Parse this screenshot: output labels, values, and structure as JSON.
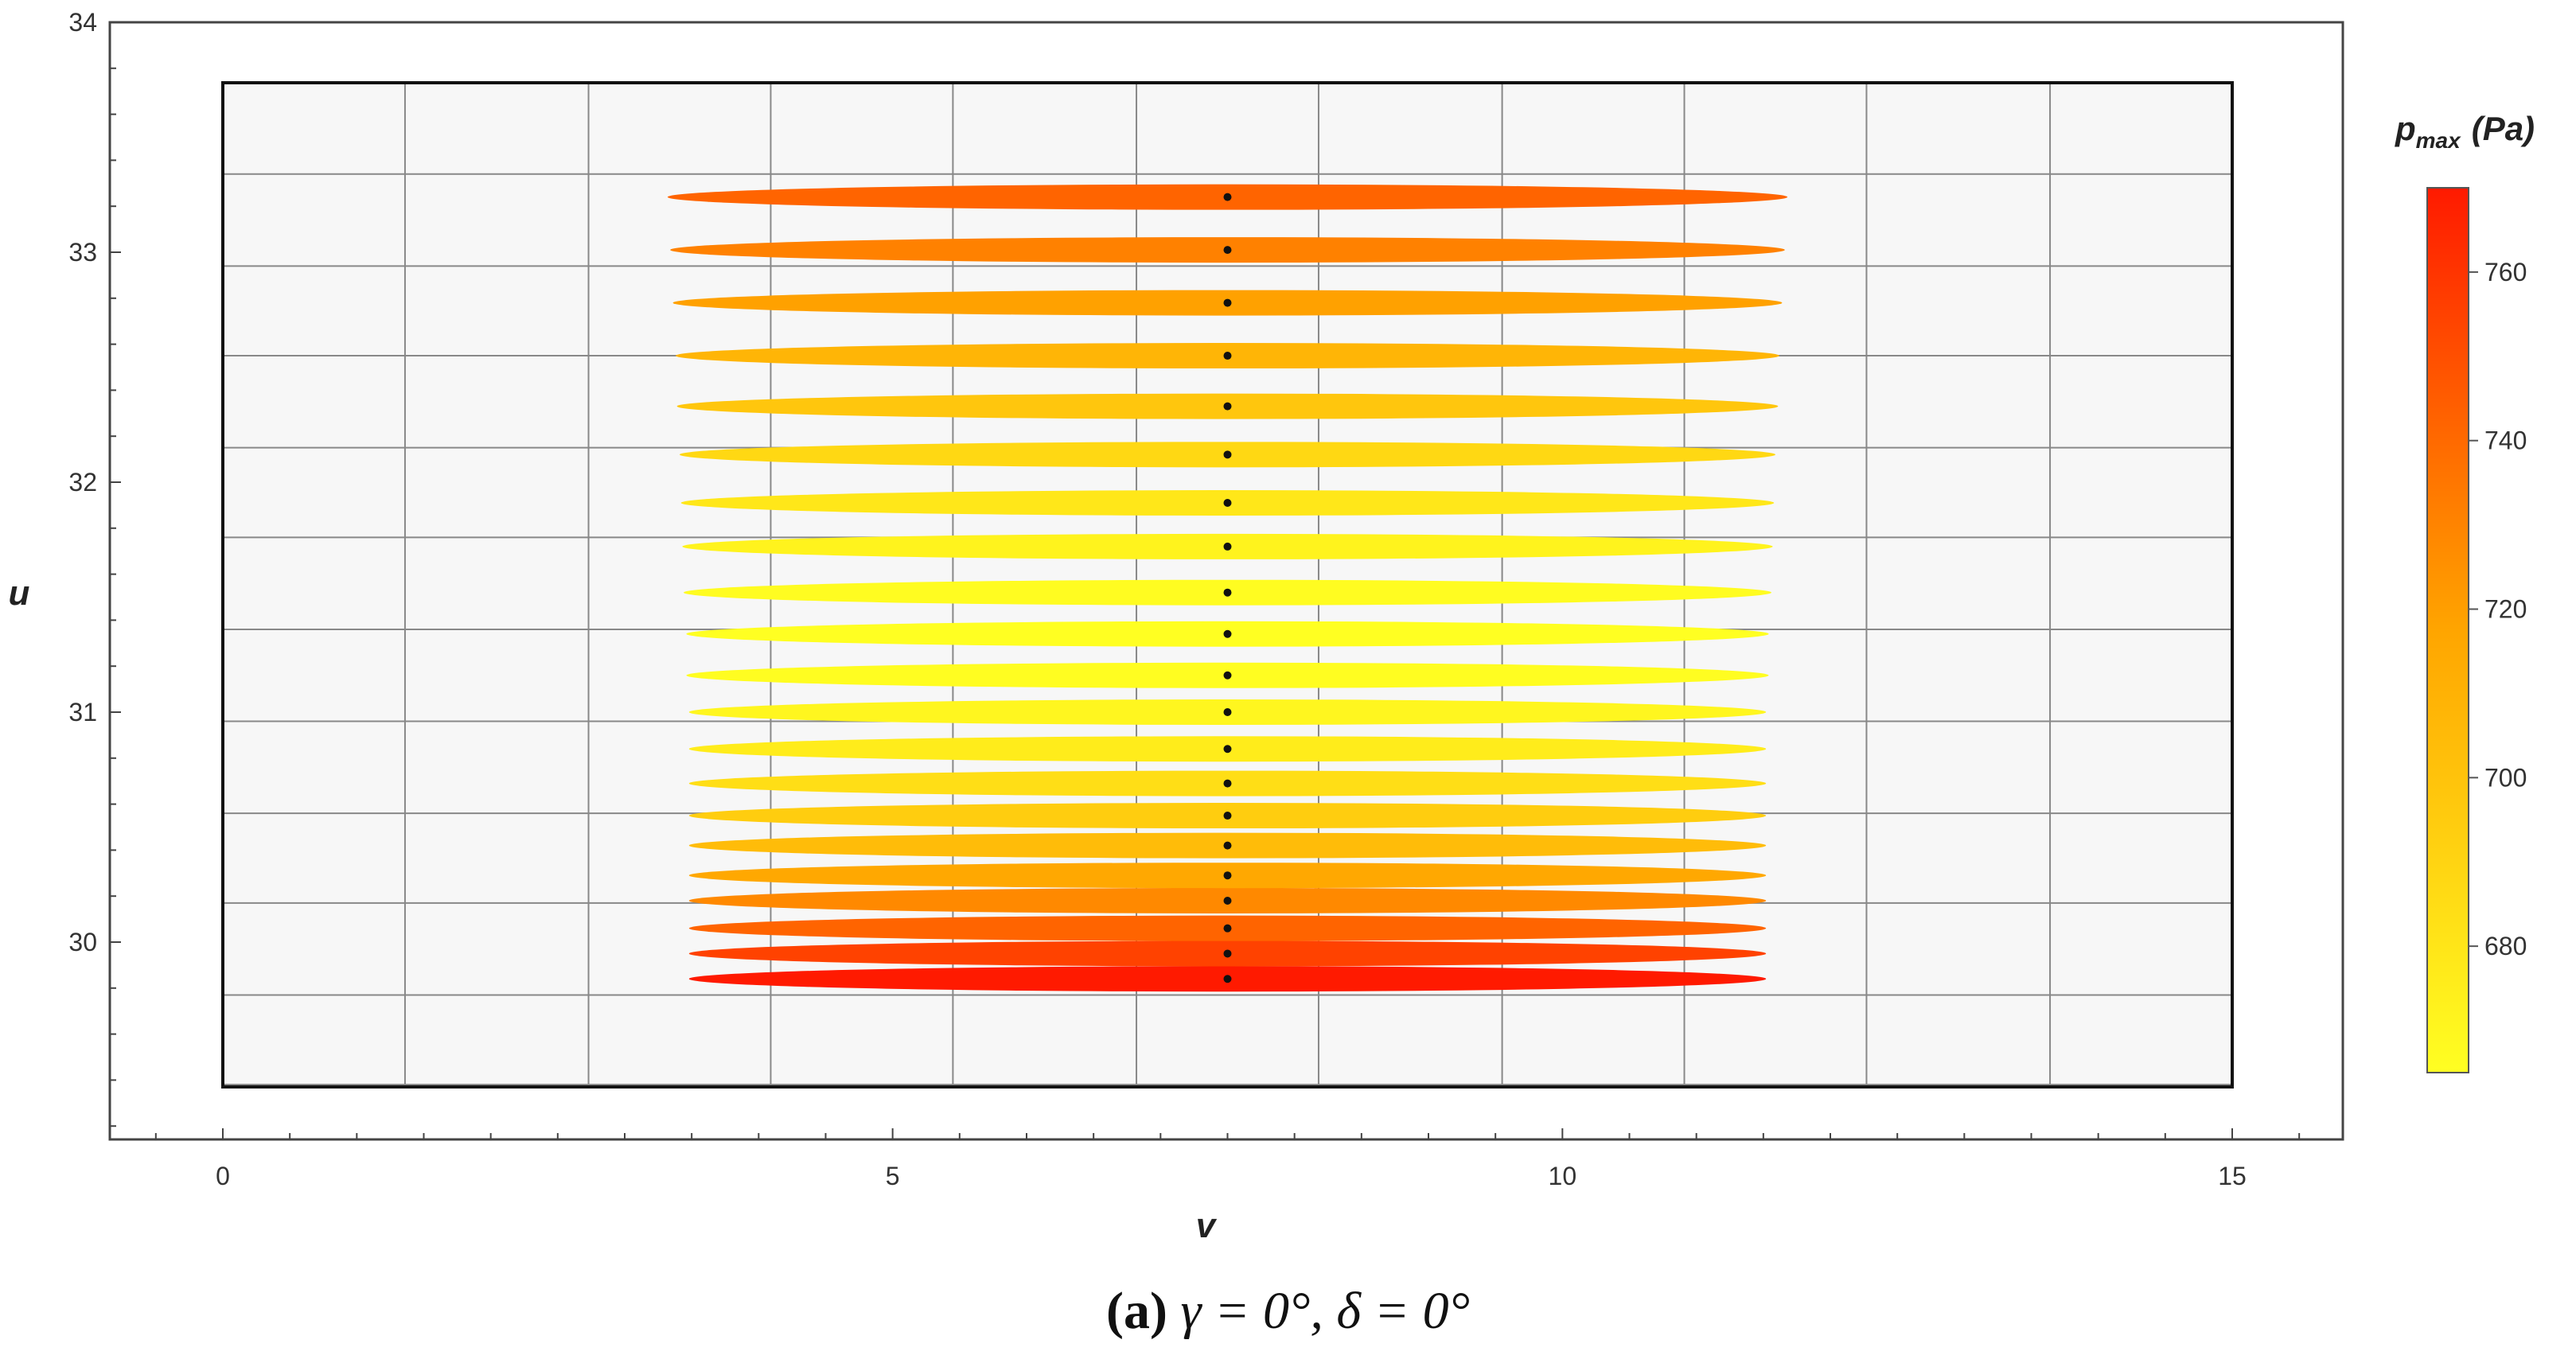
{
  "chart_data": {
    "type": "scatter",
    "title": "",
    "xlabel": "v",
    "ylabel": "u",
    "xlim": [
      -0.8,
      15.8
    ],
    "ylim": [
      29.1,
      34.0
    ],
    "x_ticks": [
      0,
      5,
      10,
      15
    ],
    "y_ticks": [
      30,
      31,
      32,
      33,
      34
    ],
    "grid": true,
    "grid_x": [
      0,
      1.36,
      2.73,
      4.09,
      5.45,
      6.82,
      8.18,
      9.55,
      10.91,
      12.27,
      13.64,
      15
    ],
    "grid_y": [
      29.38,
      29.77,
      30.17,
      30.56,
      30.96,
      31.36,
      31.76,
      32.15,
      32.55,
      32.94,
      33.34,
      33.74
    ],
    "series": [
      {
        "marker": "ellipse",
        "center_x": 7.5,
        "points": [
          {
            "u": 29.84,
            "xmin": 3.48,
            "xmax": 11.52,
            "pmax": 770
          },
          {
            "u": 29.95,
            "xmin": 3.48,
            "xmax": 11.52,
            "pmax": 755
          },
          {
            "u": 30.06,
            "xmin": 3.48,
            "xmax": 11.52,
            "pmax": 742
          },
          {
            "u": 30.18,
            "xmin": 3.48,
            "xmax": 11.52,
            "pmax": 728
          },
          {
            "u": 30.29,
            "xmin": 3.48,
            "xmax": 11.52,
            "pmax": 716
          },
          {
            "u": 30.42,
            "xmin": 3.48,
            "xmax": 11.52,
            "pmax": 704
          },
          {
            "u": 30.55,
            "xmin": 3.48,
            "xmax": 11.52,
            "pmax": 694
          },
          {
            "u": 30.69,
            "xmin": 3.48,
            "xmax": 11.52,
            "pmax": 684
          },
          {
            "u": 30.84,
            "xmin": 3.48,
            "xmax": 11.52,
            "pmax": 676
          },
          {
            "u": 31.0,
            "xmin": 3.48,
            "xmax": 11.52,
            "pmax": 670
          },
          {
            "u": 31.16,
            "xmin": 3.46,
            "xmax": 11.54,
            "pmax": 666
          },
          {
            "u": 31.34,
            "xmin": 3.46,
            "xmax": 11.54,
            "pmax": 665
          },
          {
            "u": 31.52,
            "xmin": 3.44,
            "xmax": 11.56,
            "pmax": 667
          },
          {
            "u": 31.72,
            "xmin": 3.43,
            "xmax": 11.57,
            "pmax": 672
          },
          {
            "u": 31.91,
            "xmin": 3.42,
            "xmax": 11.58,
            "pmax": 679
          },
          {
            "u": 32.12,
            "xmin": 3.41,
            "xmax": 11.59,
            "pmax": 688
          },
          {
            "u": 32.33,
            "xmin": 3.39,
            "xmax": 11.61,
            "pmax": 698
          },
          {
            "u": 32.55,
            "xmin": 3.38,
            "xmax": 11.62,
            "pmax": 708
          },
          {
            "u": 32.78,
            "xmin": 3.36,
            "xmax": 11.64,
            "pmax": 719
          },
          {
            "u": 33.01,
            "xmin": 3.34,
            "xmax": 11.66,
            "pmax": 731
          },
          {
            "u": 33.24,
            "xmin": 3.32,
            "xmax": 11.68,
            "pmax": 742
          }
        ]
      }
    ],
    "colorbar": {
      "title_main": "p",
      "title_sub": "max",
      "title_unit": "(Pa)",
      "min": 665,
      "max": 770,
      "ticks": [
        680,
        700,
        720,
        740,
        760
      ],
      "color_low": "#ffff22",
      "color_mid": "#ffa500",
      "color_high": "#ff1a00"
    }
  },
  "caption": {
    "label": "(a)",
    "text": "γ = 0°,  δ = 0°"
  },
  "colors": {
    "grid": "#888888",
    "plot_background": "#f7f7f7",
    "frame": "#444444",
    "inner_frame": "#111111",
    "point": "#111111"
  }
}
